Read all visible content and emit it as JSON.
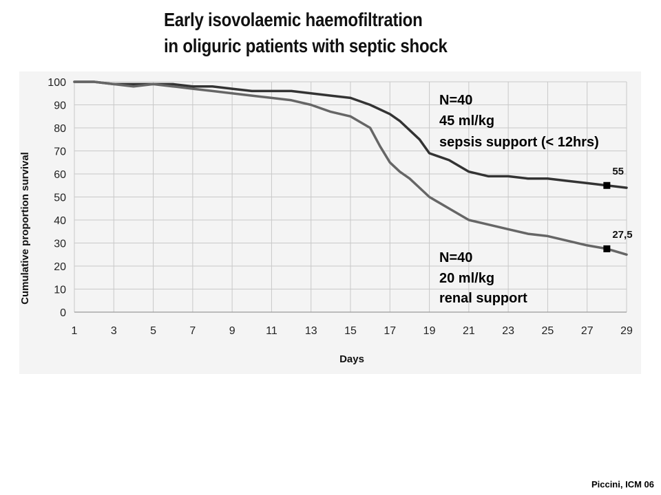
{
  "title": {
    "line1": "Early isovolaemic haemofiltration",
    "line2": "in oliguric patients with septic shock"
  },
  "credit": "Piccini, ICM 06",
  "chart_data": {
    "type": "line",
    "title": "Early isovolaemic haemofiltration in oliguric patients with septic shock",
    "xlabel": "Days",
    "ylabel": "Cumulative proportion survival",
    "xlim": [
      1,
      29
    ],
    "ylim": [
      0,
      100
    ],
    "x_ticks": [
      "1",
      "3",
      "5",
      "7",
      "9",
      "11",
      "13",
      "15",
      "17",
      "19",
      "21",
      "23",
      "25",
      "27",
      "29"
    ],
    "y_ticks": [
      "0",
      "10",
      "20",
      "30",
      "40",
      "50",
      "60",
      "70",
      "80",
      "90",
      "100"
    ],
    "grid": true,
    "series": [
      {
        "color": "#333333",
        "x": [
          1,
          2,
          3,
          4,
          5,
          6,
          7,
          8,
          9,
          10,
          11,
          12,
          13,
          14,
          15,
          16,
          17,
          17.5,
          18,
          18.5,
          19,
          20,
          21,
          22,
          23,
          24,
          25,
          26,
          27,
          28,
          29
        ],
        "y": [
          100,
          100,
          99,
          99,
          99,
          99,
          98,
          98,
          97,
          96,
          96,
          96,
          95,
          94,
          93,
          90,
          86,
          83,
          79,
          75,
          69,
          66,
          61,
          59,
          59,
          58,
          58,
          57,
          56,
          55,
          54
        ],
        "endpoint": {
          "x": 28,
          "y": 55,
          "label": "55"
        }
      },
      {
        "color": "#666666",
        "x": [
          1,
          2,
          3,
          4,
          5,
          6,
          7,
          8,
          9,
          10,
          11,
          12,
          13,
          14,
          15,
          16,
          16.5,
          17,
          17.5,
          18,
          18.5,
          19,
          20,
          21,
          22,
          23,
          24,
          25,
          26,
          27,
          28,
          29
        ],
        "y": [
          100,
          100,
          99,
          98,
          99,
          98,
          97,
          96,
          95,
          94,
          93,
          92,
          90,
          87,
          85,
          80,
          72,
          65,
          61,
          58,
          54,
          50,
          45,
          40,
          38,
          36,
          34,
          33,
          31,
          29,
          27.5,
          25
        ],
        "endpoint": {
          "x": 28,
          "y": 27.5,
          "label": "27,5"
        }
      }
    ],
    "annotations": {
      "upper": [
        "N=40",
        "45 ml/kg",
        "sepsis support (< 12hrs)"
      ],
      "lower": [
        "N=40",
        "20 ml/kg",
        "renal support"
      ]
    }
  }
}
